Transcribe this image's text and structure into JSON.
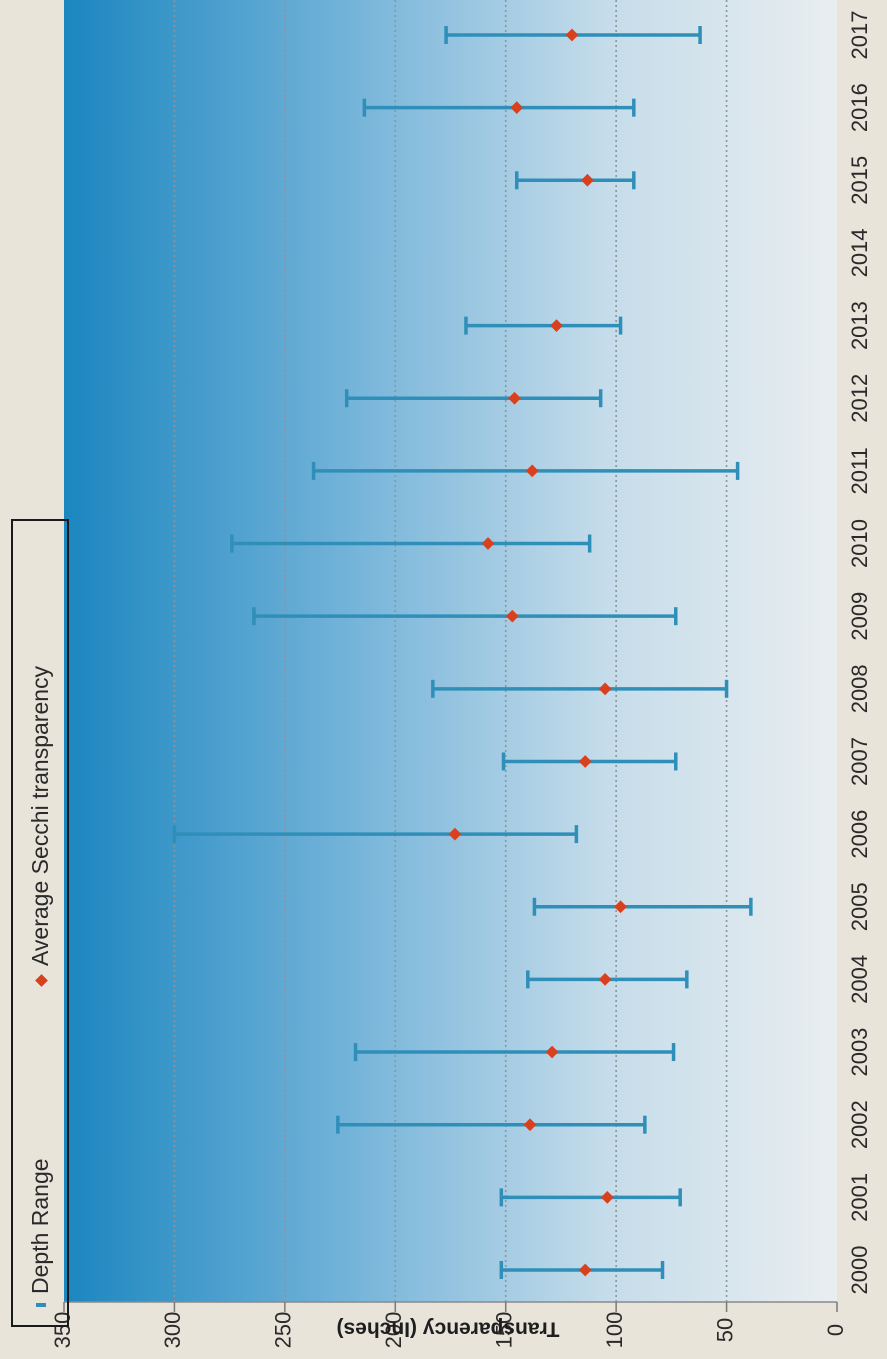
{
  "chart_data": {
    "type": "scatter",
    "title": "",
    "xlabel": "",
    "ylabel": "Transparency (Inches)",
    "ylim": [
      0,
      350
    ],
    "yticks": [
      0,
      50,
      100,
      150,
      200,
      250,
      300,
      350
    ],
    "gridlines": [
      50,
      100,
      150,
      200,
      250,
      300
    ],
    "grid": "horizontal dotted",
    "legend_position": "top",
    "categories": [
      "2000",
      "2001",
      "2002",
      "2003",
      "2004",
      "2005",
      "2006",
      "2007",
      "2008",
      "2009",
      "2010",
      "2011",
      "2012",
      "2013",
      "2014",
      "2015",
      "2016",
      "2017"
    ],
    "series": [
      {
        "name": "Depth Range",
        "kind": "range",
        "color": "#2f8fb8",
        "low": [
          79,
          71,
          87,
          74,
          68,
          39,
          118,
          73,
          50,
          73,
          112,
          45,
          107,
          98,
          null,
          92,
          92,
          62
        ],
        "high": [
          152,
          152,
          226,
          218,
          140,
          137,
          300,
          151,
          183,
          264,
          274,
          237,
          222,
          168,
          null,
          145,
          214,
          177
        ]
      },
      {
        "name": "Average Secchi transparency",
        "kind": "points",
        "color": "#d9411e",
        "values": [
          114,
          104,
          139,
          129,
          105,
          98,
          173,
          114,
          105,
          147,
          158,
          138,
          146,
          127,
          null,
          113,
          145,
          120
        ]
      }
    ]
  }
}
